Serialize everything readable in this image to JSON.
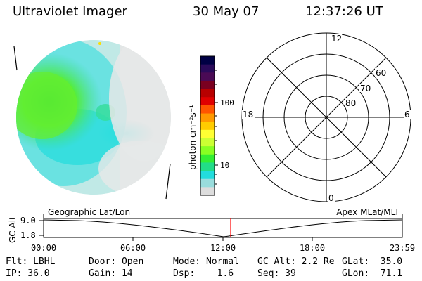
{
  "header": {
    "instrument": "Ultraviolet Imager",
    "date": "30 May 07",
    "time": "12:37:26 UT"
  },
  "colorbar": {
    "unit_label": "photon cm⁻²s⁻¹",
    "ticks": [
      "100",
      "10"
    ],
    "colors": [
      "#000044",
      "#2a0a5a",
      "#4a0a55",
      "#7a0020",
      "#b80000",
      "#e00000",
      "#ff5500",
      "#ff9900",
      "#ffcc00",
      "#ffff33",
      "#ccff33",
      "#88ff22",
      "#33ee33",
      "#22dd88",
      "#22dddd",
      "#99dddd",
      "#dddddd"
    ]
  },
  "polar_plot": {
    "mlt_labels": [
      "12",
      "18",
      "6",
      "0"
    ],
    "lat_labels": [
      "60",
      "70",
      "80"
    ]
  },
  "timeline": {
    "left_label": "Geographic Lat/Lon",
    "right_label": "Apex MLat/MLT",
    "y_axis_label": "GC Alt",
    "y_ticks": [
      "9.0",
      "1.8"
    ],
    "x_ticks": [
      "00:00",
      "06:00",
      "12:00",
      "18:00",
      "23:59"
    ],
    "marker_color": "#ff0000"
  },
  "status": {
    "flt": "Flt: LBHL",
    "door": "Door: Open",
    "mode": "Mode: Normal",
    "gc_alt": "GC Alt: 2.2 Re",
    "glat": "GLat:  35.0",
    "ip": "IP: 36.0",
    "gain": "Gain: 14",
    "dsp": "Dsp:    1.6",
    "seq": "Seq: 39",
    "glon": "GLon:  71.1"
  }
}
